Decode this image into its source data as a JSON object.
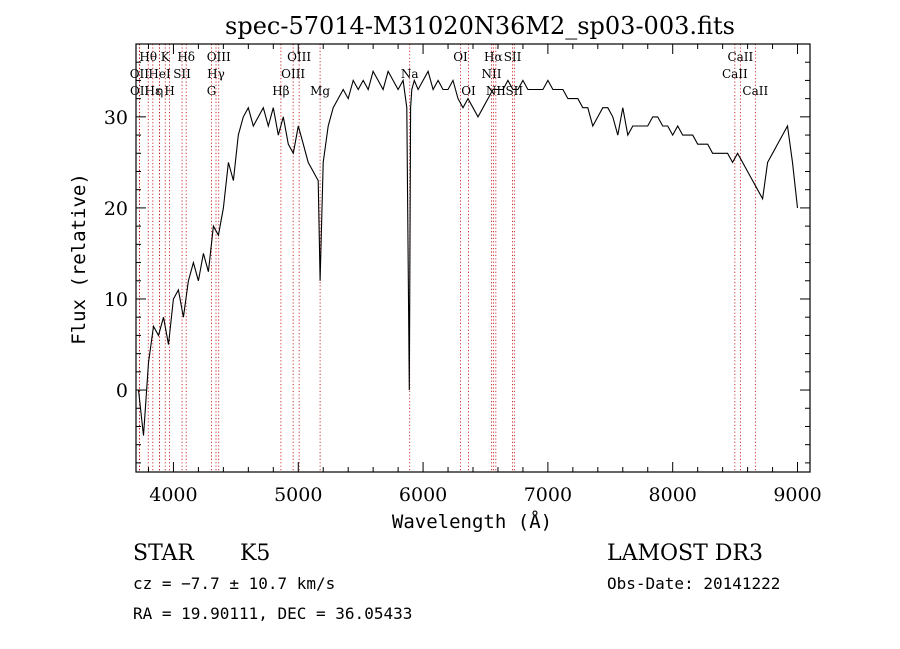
{
  "chart_data": {
    "type": "line",
    "title": "spec-57014-M31020N36M2_sp03-003.fits",
    "xlabel": "Wavelength (Å)",
    "ylabel": "Flux (relative)",
    "xlim": [
      3700,
      9100
    ],
    "ylim": [
      -9,
      38
    ],
    "xticks": [
      4000,
      5000,
      6000,
      7000,
      8000,
      9000
    ],
    "yticks": [
      0,
      10,
      20,
      30
    ],
    "xtick_labels": [
      "4000",
      "5000",
      "6000",
      "7000",
      "8000",
      "9000"
    ],
    "ytick_labels": [
      "0",
      "10",
      "20",
      "30"
    ],
    "series": [
      {
        "x": [
          3720,
          3760,
          3800,
          3840,
          3880,
          3920,
          3960,
          4000,
          4040,
          4080,
          4120,
          4160,
          4200,
          4240,
          4280,
          4320,
          4360,
          4400,
          4440,
          4480,
          4520,
          4560,
          4600,
          4640,
          4680,
          4720,
          4760,
          4800,
          4840,
          4880,
          4920,
          4960,
          5000,
          5040,
          5080,
          5120,
          5160,
          5175,
          5200,
          5240,
          5280,
          5320,
          5360,
          5400,
          5440,
          5480,
          5520,
          5560,
          5600,
          5640,
          5680,
          5720,
          5760,
          5800,
          5840,
          5870,
          5890,
          5900,
          5910,
          5930,
          5960,
          6000,
          6040,
          6080,
          6120,
          6160,
          6200,
          6240,
          6280,
          6320,
          6360,
          6400,
          6440,
          6480,
          6520,
          6560,
          6600,
          6640,
          6680,
          6720,
          6760,
          6800,
          6840,
          6880,
          6920,
          6960,
          7000,
          7040,
          7080,
          7120,
          7160,
          7200,
          7240,
          7280,
          7320,
          7360,
          7400,
          7440,
          7480,
          7520,
          7560,
          7600,
          7640,
          7680,
          7720,
          7760,
          7800,
          7840,
          7880,
          7920,
          7960,
          8000,
          8040,
          8080,
          8120,
          8160,
          8200,
          8240,
          8280,
          8320,
          8360,
          8400,
          8440,
          8480,
          8520,
          8560,
          8600,
          8640,
          8680,
          8720,
          8760,
          8800,
          8840,
          8880,
          8920,
          8960,
          9000
        ],
        "values": [
          0,
          -5,
          3,
          7,
          6,
          8,
          5,
          10,
          11,
          8,
          12,
          14,
          12,
          15,
          13,
          18,
          17,
          20,
          25,
          23,
          28,
          30,
          31,
          29,
          30,
          31,
          29,
          31,
          28,
          30,
          27,
          26,
          29,
          27,
          25,
          24,
          23,
          12,
          25,
          29,
          31,
          32,
          33,
          32,
          34,
          33,
          34,
          33,
          35,
          34,
          33,
          35,
          34,
          33,
          34,
          31,
          0,
          31,
          33,
          34,
          33,
          34,
          35,
          33,
          34,
          33,
          33,
          34,
          32,
          31,
          32,
          31,
          30,
          31,
          32,
          33,
          33,
          33,
          34,
          33,
          33,
          34,
          33,
          33,
          33,
          33,
          34,
          33,
          33,
          33,
          32,
          32,
          32,
          31,
          31,
          29,
          30,
          31,
          31,
          30,
          28,
          31,
          28,
          29,
          29,
          29,
          29,
          30,
          30,
          29,
          29,
          28,
          29,
          28,
          28,
          28,
          27,
          27,
          27,
          26,
          26,
          26,
          26,
          25,
          26,
          25,
          24,
          23,
          22,
          21,
          25,
          26,
          27,
          28,
          29,
          25,
          20
        ]
      }
    ],
    "line_markers": [
      {
        "label": "Hθ",
        "x": 3798,
        "row": 0
      },
      {
        "label": "OII",
        "x": 3727,
        "row": 1
      },
      {
        "label": "OII",
        "x": 3729,
        "row": 2
      },
      {
        "label": "Hε",
        "x": 3835,
        "row": 2
      },
      {
        "label": "HeI",
        "x": 3889,
        "row": 1
      },
      {
        "label": "η",
        "x": 3889,
        "row": 2
      },
      {
        "label": "K",
        "x": 3934,
        "row": 0
      },
      {
        "label": "SII",
        "x": 4069,
        "row": 1
      },
      {
        "label": "H",
        "x": 3969,
        "row": 2
      },
      {
        "label": "Hδ",
        "x": 4102,
        "row": 0
      },
      {
        "label": "OIII",
        "x": 4363,
        "row": 0
      },
      {
        "label": "Hγ",
        "x": 4341,
        "row": 1
      },
      {
        "label": "G",
        "x": 4305,
        "row": 2
      },
      {
        "label": "OIII",
        "x": 5007,
        "row": 0
      },
      {
        "label": "OIII",
        "x": 4959,
        "row": 1
      },
      {
        "label": "Hβ",
        "x": 4861,
        "row": 2
      },
      {
        "label": "Mg",
        "x": 5175,
        "row": 2
      },
      {
        "label": "Na",
        "x": 5893,
        "row": 1
      },
      {
        "label": "OI",
        "x": 6300,
        "row": 0
      },
      {
        "label": "OI",
        "x": 6364,
        "row": 2
      },
      {
        "label": "Hα",
        "x": 6563,
        "row": 0
      },
      {
        "label": "SII",
        "x": 6717,
        "row": 0
      },
      {
        "label": "NII",
        "x": 6548,
        "row": 1
      },
      {
        "label": "NII",
        "x": 6583,
        "row": 2
      },
      {
        "label": "SII",
        "x": 6731,
        "row": 2
      },
      {
        "label": "CaII",
        "x": 8542,
        "row": 0
      },
      {
        "label": "CaII",
        "x": 8498,
        "row": 1
      },
      {
        "label": "CaII",
        "x": 8662,
        "row": 2
      }
    ]
  },
  "footer": {
    "object_class": "STAR",
    "subclass": "K5",
    "survey": "LAMOST DR3",
    "cz": "cz = −7.7 ± 10.7 km/s",
    "obs_date": "Obs-Date: 20141222",
    "coords": "RA =  19.90111, DEC =  36.05433"
  },
  "colors": {
    "spectrum": "#000000",
    "line_markers": "#c00000",
    "axes": "#000000"
  }
}
